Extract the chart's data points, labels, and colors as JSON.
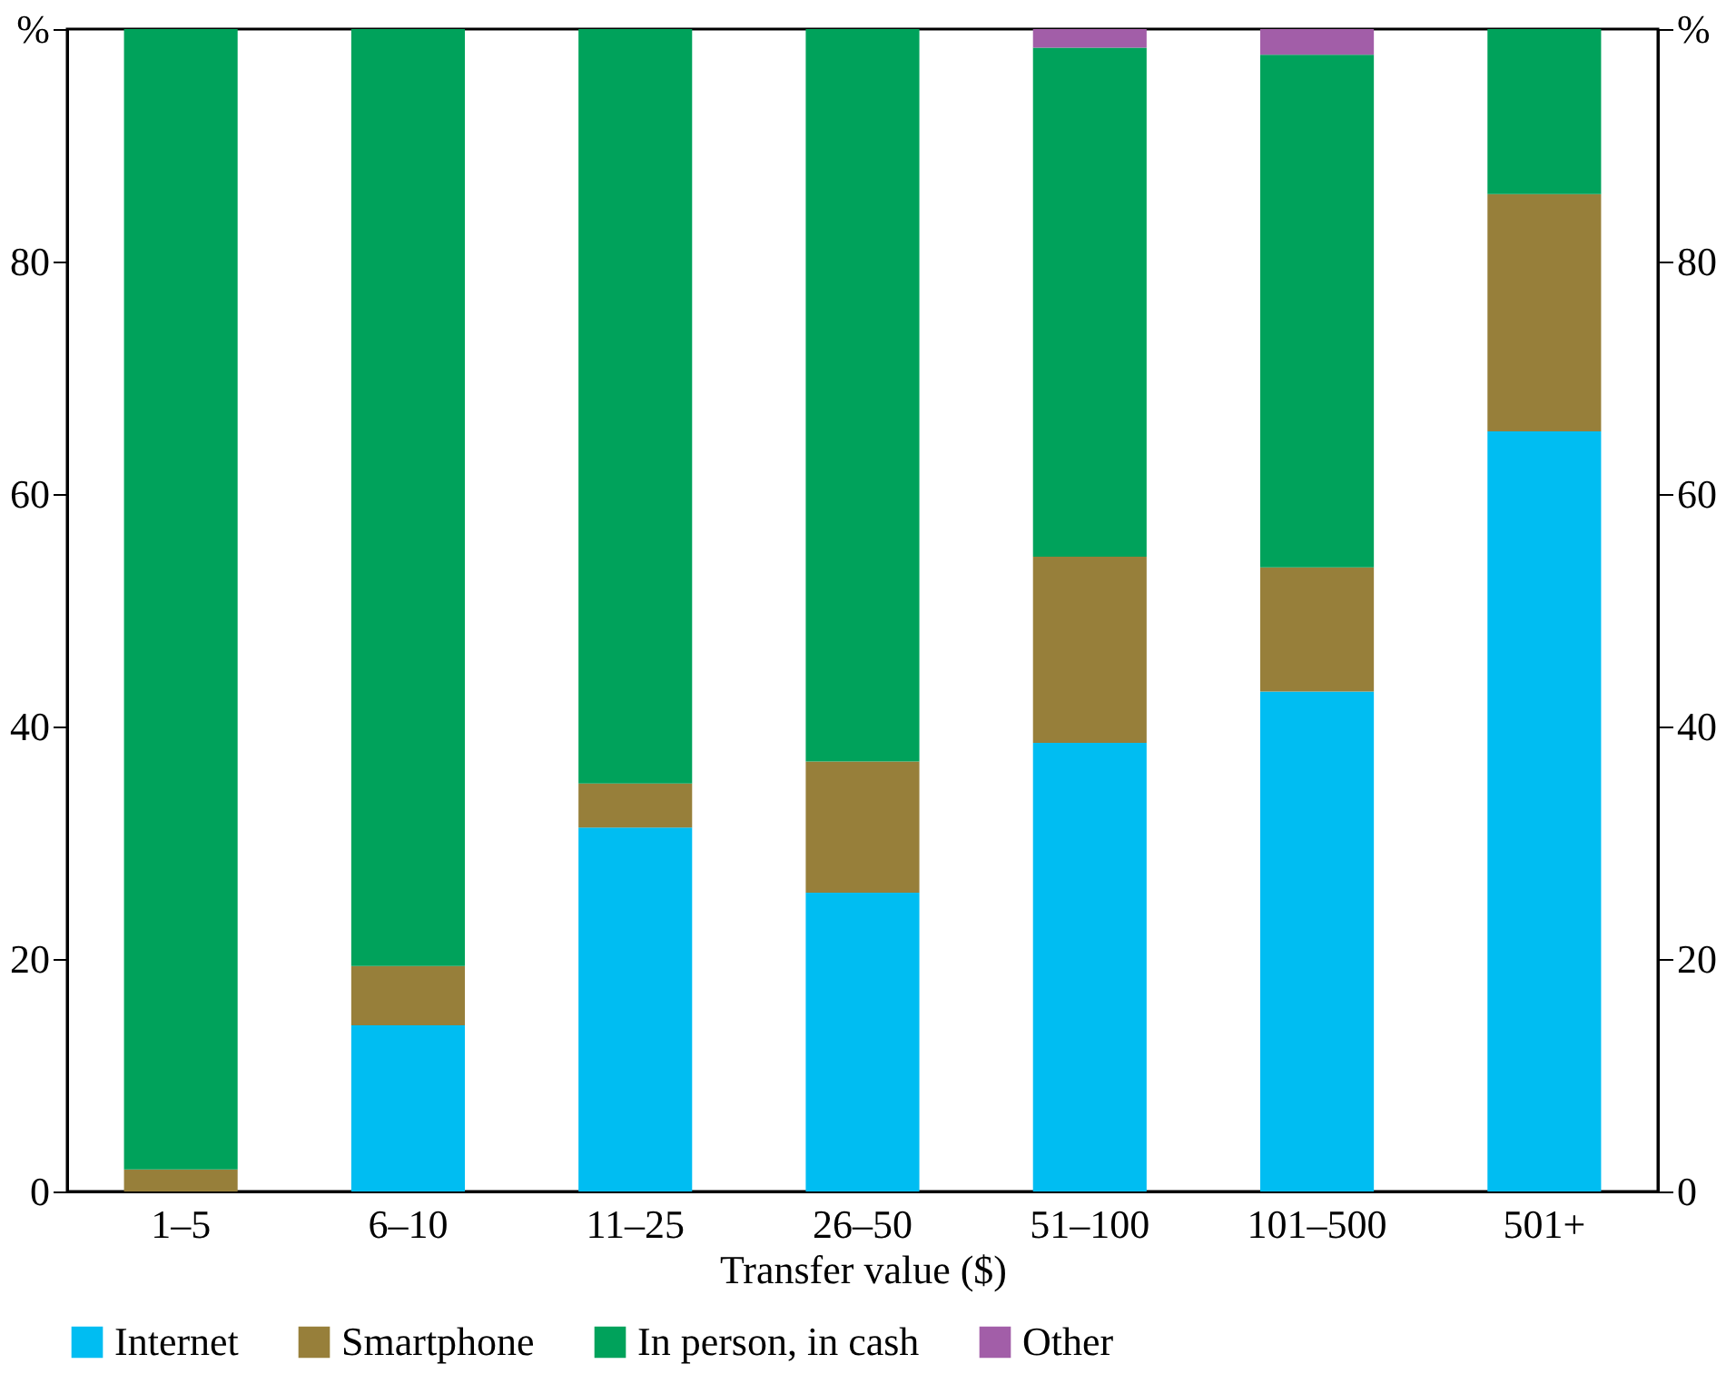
{
  "chart_data": {
    "type": "bar",
    "stacked": true,
    "xlabel": "Transfer value ($)",
    "categories": [
      "1–5",
      "6–10",
      "11–25",
      "26–50",
      "51–100",
      "101–500",
      "501+"
    ],
    "series": [
      {
        "name": "Internet",
        "color": "#00bdf2",
        "values": [
          0,
          14.3,
          31.3,
          25.7,
          38.6,
          43.0,
          65.4
        ]
      },
      {
        "name": "Smartphone",
        "color": "#977f3a",
        "values": [
          1.9,
          5.1,
          3.8,
          11.3,
          16.0,
          10.7,
          20.4
        ]
      },
      {
        "name": "In person, in cash",
        "color": "#00a25b",
        "values": [
          98.1,
          80.6,
          64.9,
          63.0,
          43.8,
          44.1,
          14.2
        ]
      },
      {
        "name": "Other",
        "color": "#a25ea8",
        "values": [
          0,
          0,
          0,
          0,
          1.6,
          2.2,
          0
        ]
      }
    ],
    "ylim": [
      0,
      100
    ],
    "yticks": [
      0,
      20,
      40,
      60,
      80,
      {
        "value": 100,
        "label": "%"
      }
    ],
    "y2lim": [
      0,
      100
    ],
    "y2ticks": [
      0,
      20,
      40,
      60,
      80,
      {
        "value": 100,
        "label": "%"
      }
    ],
    "grid": false,
    "legend": "bottom"
  }
}
